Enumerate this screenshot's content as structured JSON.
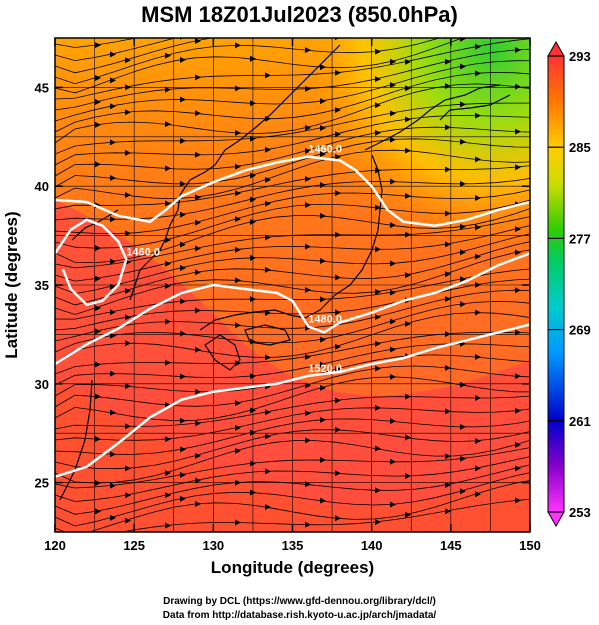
{
  "title": "MSM 18Z01Jul2023 (850.0hPa)",
  "xlabel": "Longitude (degrees)",
  "ylabel": "Latitude  (degrees)",
  "credit_line1": "Drawing by DCL (https://www.gfd-dennou.org/library/dcl/)",
  "credit_line2": "Data from http://database.rish.kyoto-u.ac.jp/arch/jmadata/",
  "chart_data": {
    "type": "heatmap",
    "xlim": [
      120,
      150
    ],
    "ylim": [
      22.5,
      47.5
    ],
    "x_ticks": [
      120,
      125,
      130,
      135,
      140,
      145,
      150
    ],
    "y_ticks": [
      25,
      30,
      35,
      40,
      45
    ],
    "colorbar": {
      "min": 253,
      "max": 293,
      "ticks": [
        253,
        261,
        269,
        277,
        285,
        293
      ],
      "colors": [
        "#ff33ff",
        "#8800cc",
        "#0000cc",
        "#0099ff",
        "#00cccc",
        "#00cc66",
        "#33cc00",
        "#ccdd00",
        "#ffcc00",
        "#ff7700",
        "#ff3333"
      ]
    },
    "contours": [
      {
        "label": "1460.0",
        "points": [
          [
            120,
            39.3
          ],
          [
            122,
            39.2
          ],
          [
            124,
            38.5
          ],
          [
            126,
            38.2
          ],
          [
            127,
            38.8
          ],
          [
            128,
            39.5
          ],
          [
            130,
            40.2
          ],
          [
            132,
            40.8
          ],
          [
            134,
            41.2
          ],
          [
            136,
            41.5
          ],
          [
            138,
            41.3
          ],
          [
            139,
            40.8
          ],
          [
            140,
            40.0
          ],
          [
            141,
            38.8
          ],
          [
            142,
            38.2
          ],
          [
            144,
            38.0
          ],
          [
            146,
            38.3
          ],
          [
            148,
            38.8
          ],
          [
            150,
            39.2
          ]
        ]
      },
      {
        "label": "1480.0",
        "points": [
          [
            120,
            31.0
          ],
          [
            122,
            32.0
          ],
          [
            124,
            32.8
          ],
          [
            126,
            33.8
          ],
          [
            128,
            34.6
          ],
          [
            130,
            35.0
          ],
          [
            132,
            34.8
          ],
          [
            134,
            34.6
          ],
          [
            135,
            34.2
          ],
          [
            136,
            32.9
          ],
          [
            137,
            32.6
          ],
          [
            138,
            33.1
          ],
          [
            140,
            33.6
          ],
          [
            142,
            34.2
          ],
          [
            144,
            34.6
          ],
          [
            146,
            35.2
          ],
          [
            148,
            36.0
          ],
          [
            150,
            36.6
          ]
        ]
      },
      {
        "label": "1460.0",
        "points": [
          [
            120,
            36.6
          ],
          [
            121,
            37.8
          ],
          [
            122,
            38.3
          ],
          [
            123,
            38.0
          ],
          [
            124,
            37.2
          ],
          [
            124.5,
            36.3
          ],
          [
            124,
            35.0
          ],
          [
            123,
            34.2
          ],
          [
            122,
            34.0
          ],
          [
            121,
            34.8
          ],
          [
            120.5,
            35.8
          ]
        ]
      },
      {
        "label": "1520.0",
        "points": [
          [
            120,
            25.3
          ],
          [
            122,
            25.8
          ],
          [
            124,
            27.0
          ],
          [
            126,
            28.3
          ],
          [
            128,
            29.2
          ],
          [
            130,
            29.6
          ],
          [
            132,
            29.8
          ],
          [
            134,
            30.0
          ],
          [
            136,
            30.4
          ],
          [
            138,
            30.6
          ],
          [
            140,
            31.0
          ],
          [
            142,
            31.3
          ],
          [
            144,
            31.8
          ],
          [
            146,
            32.2
          ],
          [
            148,
            32.6
          ],
          [
            150,
            33.0
          ]
        ]
      }
    ],
    "wind_pattern": "westerly streamlines"
  }
}
